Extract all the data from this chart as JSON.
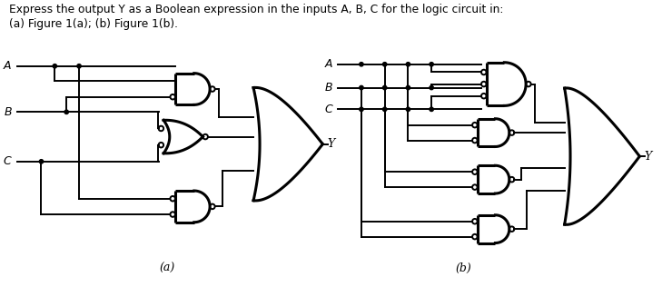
{
  "title1": "Express the output Y as a Boolean expression in the inputs A, B, C for the logic circuit in:",
  "title2": "(a) Figure 1(a); (b) Figure 1(b).",
  "lc": "#000000",
  "bg": "#ffffff",
  "lw": 1.4,
  "glw": 2.2,
  "BR": 0.028,
  "dot_r": 0.022,
  "a_label": "(a)",
  "b_label": "(b)",
  "Y_label": "Y"
}
